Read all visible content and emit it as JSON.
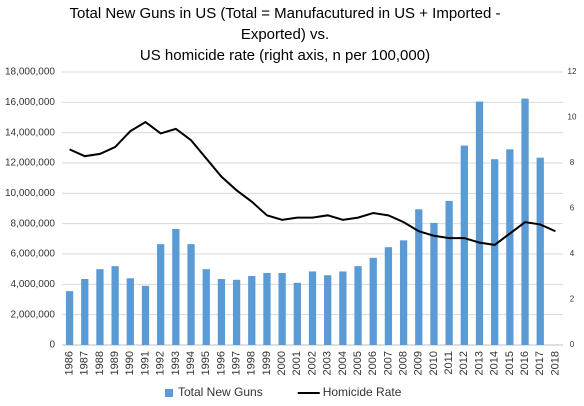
{
  "chart_data": {
    "type": "bar",
    "title": [
      "Total New Guns in US (Total = Manufacutured in US + Imported -",
      "Exported) vs.",
      "US homicide rate (right axis, n per 100,000)"
    ],
    "categories": [
      "1986",
      "1987",
      "1988",
      "1989",
      "1990",
      "1991",
      "1992",
      "1993",
      "1994",
      "1995",
      "1996",
      "1997",
      "1998",
      "1999",
      "2000",
      "2001",
      "2002",
      "2003",
      "2004",
      "2005",
      "2006",
      "2007",
      "2008",
      "2009",
      "2010",
      "2011",
      "2012",
      "2013",
      "2014",
      "2015",
      "2016",
      "2017",
      "2018"
    ],
    "series": [
      {
        "name": "Total New Guns",
        "type": "bar",
        "color": "#5b9bd5",
        "values": [
          3550000,
          4350000,
          5000000,
          5200000,
          4400000,
          3900000,
          6650000,
          7650000,
          6650000,
          5000000,
          4350000,
          4300000,
          4550000,
          4750000,
          4750000,
          4100000,
          4850000,
          4600000,
          4850000,
          5200000,
          5750000,
          6450000,
          6900000,
          8950000,
          8050000,
          9500000,
          13150000,
          16050000,
          12250000,
          12900000,
          16250000,
          12350000,
          null
        ]
      },
      {
        "name": "Homicide Rate",
        "type": "line",
        "axis": "y2",
        "color": "#000000",
        "values": [
          8.6,
          8.3,
          8.4,
          8.7,
          9.4,
          9.8,
          9.3,
          9.5,
          9.0,
          8.2,
          7.4,
          6.8,
          6.3,
          5.7,
          5.5,
          5.6,
          5.6,
          5.7,
          5.5,
          5.6,
          5.8,
          5.7,
          5.4,
          5.0,
          4.8,
          4.7,
          4.7,
          4.5,
          4.4,
          4.9,
          5.4,
          5.3,
          5.0
        ]
      }
    ],
    "ylim": [
      0,
      18000000
    ],
    "yticks": [
      {
        "value": 0,
        "label": "0"
      },
      {
        "value": 2000000,
        "label": "2,000,000"
      },
      {
        "value": 4000000,
        "label": "4,000,000"
      },
      {
        "value": 6000000,
        "label": "6,000,000"
      },
      {
        "value": 8000000,
        "label": "8,000,000"
      },
      {
        "value": 10000000,
        "label": "10,000,000"
      },
      {
        "value": 12000000,
        "label": "12,000,000"
      },
      {
        "value": 14000000,
        "label": "14,000,000"
      },
      {
        "value": 16000000,
        "label": "16,000,000"
      },
      {
        "value": 18000000,
        "label": "18,000,000"
      }
    ],
    "y2lim": [
      0,
      12
    ],
    "y2ticks": [
      0,
      2,
      4,
      6,
      8,
      10,
      12
    ],
    "grid": true,
    "legend": "bottom"
  }
}
